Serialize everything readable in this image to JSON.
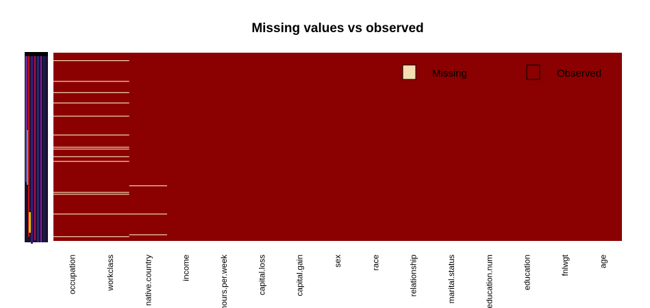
{
  "chart_data": {
    "type": "heatmap",
    "title": "Missing values vs observed",
    "xlabel": "",
    "ylabel": "",
    "columns": [
      "occupation",
      "workclass",
      "native.country",
      "income",
      "hours.per.week",
      "capital.loss",
      "capital.gain",
      "sex",
      "race",
      "relationship",
      "marital.status",
      "education.num",
      "education",
      "fnlwgt",
      "age"
    ],
    "legend": [
      {
        "name": "Missing",
        "color": "#f5deb3"
      },
      {
        "name": "Observed",
        "color": "#8b0000"
      }
    ],
    "legend_position": "top-right",
    "missing_rows": [
      {
        "columns": [
          "occupation",
          "workclass"
        ],
        "row_fractions": [
          0.04,
          0.15,
          0.21,
          0.265,
          0.335,
          0.435,
          0.5,
          0.51,
          0.55,
          0.575,
          0.74,
          0.75,
          0.855,
          0.975
        ]
      },
      {
        "columns": [
          "native.country"
        ],
        "row_fractions": [
          0.705,
          0.855,
          0.965
        ]
      }
    ]
  },
  "colors": {
    "observed": "#8b0000",
    "missing": "#f5deb3"
  }
}
